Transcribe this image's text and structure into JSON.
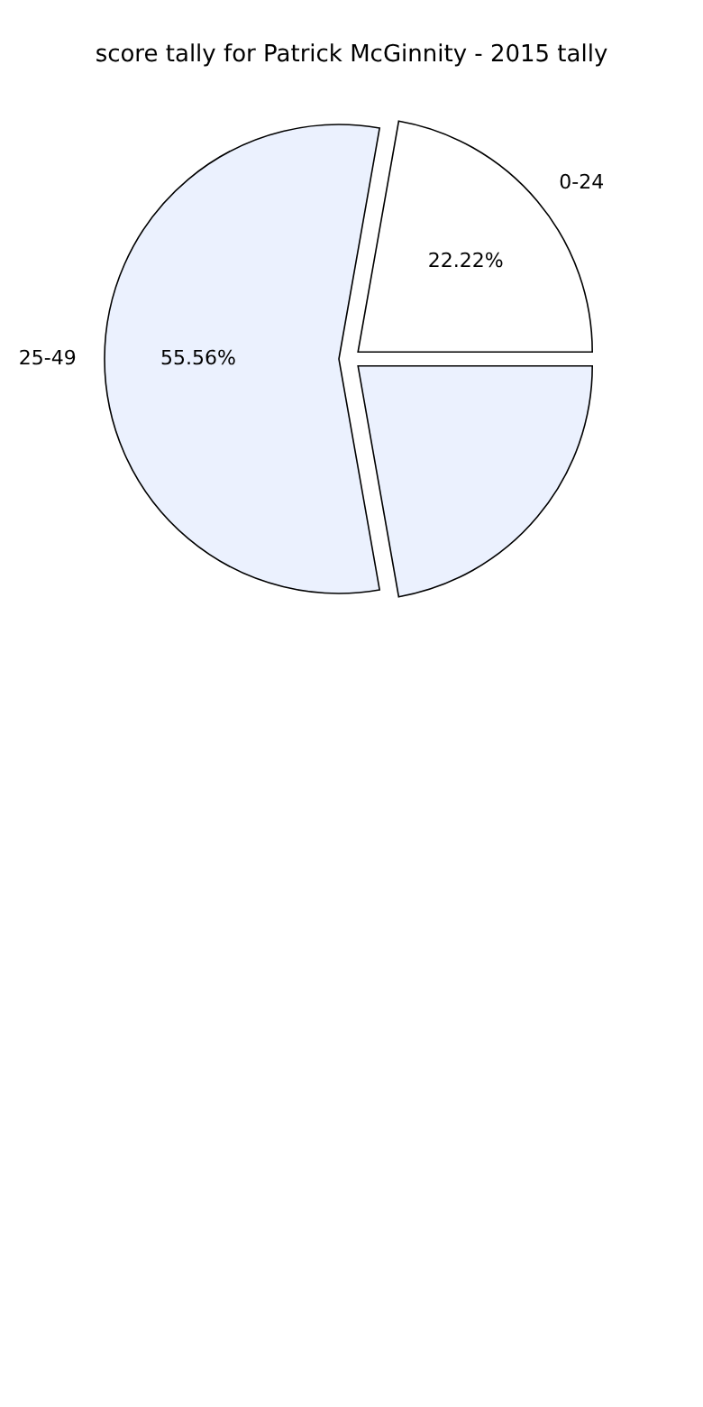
{
  "chart_data": {
    "type": "pie",
    "title": "score tally for Patrick McGinnity - 2015 tally",
    "categories": [
      "0-24",
      "25-49",
      null
    ],
    "values": [
      22.22,
      55.56,
      22.22
    ],
    "value_labels": [
      "22.22%",
      "55.56%",
      null
    ],
    "colors": [
      "#ffffff",
      "#ebf1fe",
      "#ebf1fe"
    ]
  }
}
